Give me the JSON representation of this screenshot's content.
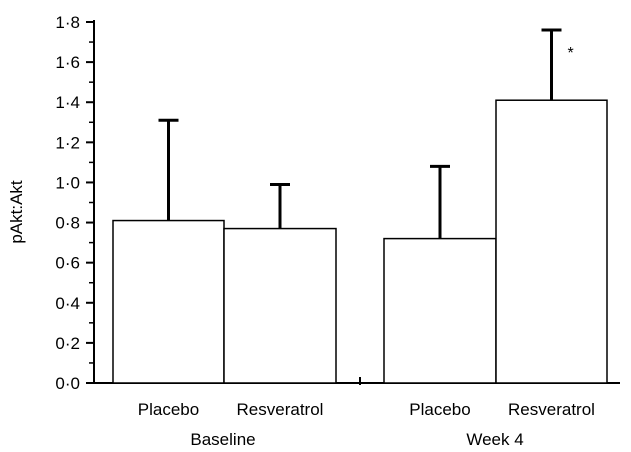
{
  "chart_data": {
    "type": "bar",
    "ylabel": "pAkt:Akt",
    "ylim": [
      0,
      1.8
    ],
    "yticks": [
      "0·0",
      "0·2",
      "0·4",
      "0·6",
      "0·8",
      "1·0",
      "1·2",
      "1·4",
      "1·6",
      "1·8"
    ],
    "groups": [
      {
        "label": "Baseline",
        "categories": [
          "Placebo",
          "Resveratrol"
        ]
      },
      {
        "label": "Week 4",
        "categories": [
          "Placebo",
          "Resveratrol"
        ]
      }
    ],
    "bars": [
      {
        "group": "Baseline",
        "category": "Placebo",
        "value": 0.81,
        "error_upper": 1.31,
        "annotation": ""
      },
      {
        "group": "Baseline",
        "category": "Resveratrol",
        "value": 0.77,
        "error_upper": 0.99,
        "annotation": ""
      },
      {
        "group": "Week 4",
        "category": "Placebo",
        "value": 0.72,
        "error_upper": 1.08,
        "annotation": ""
      },
      {
        "group": "Week 4",
        "category": "Resveratrol",
        "value": 1.41,
        "error_upper": 1.76,
        "annotation": "*"
      }
    ],
    "grid": false,
    "legend": "none"
  }
}
